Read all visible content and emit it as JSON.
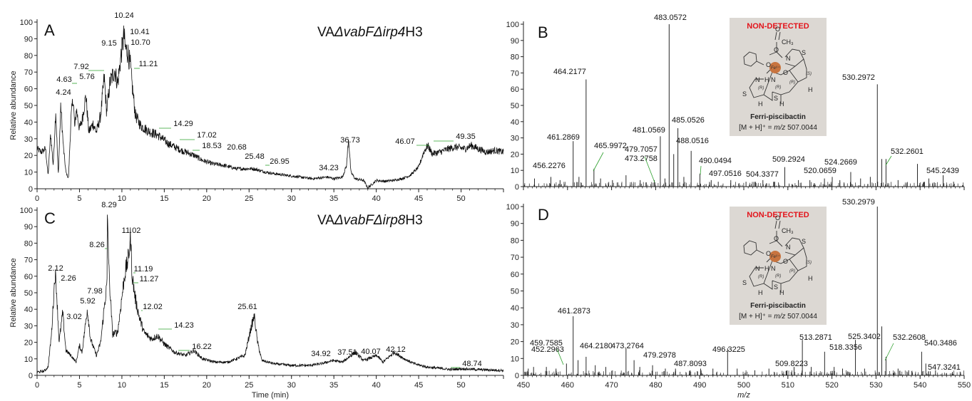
{
  "chart_data": [
    {
      "panel": "A",
      "type": "line",
      "strain": {
        "prefix": "VA",
        "italic": "ΔvabFΔirp4",
        "suffix": "H3"
      },
      "ylabel": "Relative abundance",
      "xlabel": "",
      "xlim": [
        0,
        55
      ],
      "ylim": [
        0,
        100
      ],
      "x_ticks": [
        "0",
        "5",
        "10",
        "15",
        "20",
        "25",
        "30",
        "35",
        "40",
        "45",
        "50"
      ],
      "y_ticks": [
        "0",
        "10",
        "20",
        "30",
        "40",
        "50",
        "60",
        "70",
        "80",
        "90",
        "100"
      ],
      "trace": [
        [
          0,
          24
        ],
        [
          0.5,
          22
        ],
        [
          1,
          24
        ],
        [
          1.3,
          8
        ],
        [
          1.6,
          33
        ],
        [
          1.9,
          14
        ],
        [
          2.2,
          47
        ],
        [
          2.5,
          8
        ],
        [
          2.8,
          50
        ],
        [
          3.1,
          25
        ],
        [
          3.4,
          10
        ],
        [
          3.7,
          6
        ],
        [
          4,
          42
        ],
        [
          4.24,
          55
        ],
        [
          4.45,
          36
        ],
        [
          4.63,
          48
        ],
        [
          5,
          36
        ],
        [
          5.3,
          41
        ],
        [
          5.76,
          56
        ],
        [
          6.1,
          34
        ],
        [
          6.6,
          39
        ],
        [
          7,
          34
        ],
        [
          7.5,
          44
        ],
        [
          7.92,
          67
        ],
        [
          8.2,
          46
        ],
        [
          8.6,
          64
        ],
        [
          9.15,
          71
        ],
        [
          9.5,
          63
        ],
        [
          9.9,
          80
        ],
        [
          10.24,
          92
        ],
        [
          10.41,
          84
        ],
        [
          10.7,
          82
        ],
        [
          11,
          74
        ],
        [
          11.21,
          62
        ],
        [
          11.6,
          44
        ],
        [
          12.2,
          38
        ],
        [
          13,
          35
        ],
        [
          14.29,
          32
        ],
        [
          15.5,
          27
        ],
        [
          17.02,
          23
        ],
        [
          18.53,
          20
        ],
        [
          19.5,
          17
        ],
        [
          20.68,
          15
        ],
        [
          22,
          14
        ],
        [
          23.5,
          12
        ],
        [
          25.48,
          12
        ],
        [
          26.95,
          10
        ],
        [
          28,
          9
        ],
        [
          29.5,
          8
        ],
        [
          31,
          7
        ],
        [
          32.5,
          6
        ],
        [
          34.23,
          7
        ],
        [
          35,
          6
        ],
        [
          36,
          7
        ],
        [
          36.5,
          14
        ],
        [
          36.73,
          31
        ],
        [
          37,
          10
        ],
        [
          37.5,
          6
        ],
        [
          38.5,
          5
        ],
        [
          39,
          0.5
        ],
        [
          40,
          5
        ],
        [
          41,
          4.5
        ],
        [
          42,
          5
        ],
        [
          43,
          6
        ],
        [
          44,
          8
        ],
        [
          45,
          13
        ],
        [
          45.6,
          22
        ],
        [
          46.07,
          26
        ],
        [
          46.6,
          21
        ],
        [
          47.5,
          22
        ],
        [
          48.5,
          24
        ],
        [
          49.35,
          25
        ],
        [
          50.5,
          24
        ],
        [
          51.2,
          26
        ],
        [
          52,
          24
        ],
        [
          53,
          22
        ],
        [
          54,
          23
        ],
        [
          55,
          22
        ]
      ],
      "peaks": [
        {
          "label": "4.24",
          "x": 4.24
        },
        {
          "label": "4.63",
          "x": 4.63
        },
        {
          "label": "5.76",
          "x": 5.76
        },
        {
          "label": "7.92",
          "x": 7.92
        },
        {
          "label": "9.15",
          "x": 9.15
        },
        {
          "label": "10.24",
          "x": 10.24
        },
        {
          "label": "10.41",
          "x": 10.41
        },
        {
          "label": "10.70",
          "x": 10.7
        },
        {
          "label": "11.21",
          "x": 11.21
        },
        {
          "label": "14.29",
          "x": 14.29
        },
        {
          "label": "17.02",
          "x": 17.02
        },
        {
          "label": "18.53",
          "x": 18.53
        },
        {
          "label": "20.68",
          "x": 20.68
        },
        {
          "label": "25.48",
          "x": 25.48
        },
        {
          "label": "26.95",
          "x": 26.95
        },
        {
          "label": "34.23",
          "x": 34.23
        },
        {
          "label": "36.73",
          "x": 36.73
        },
        {
          "label": "46.07",
          "x": 46.07
        },
        {
          "label": "49.35",
          "x": 49.35
        }
      ]
    },
    {
      "panel": "C",
      "type": "line",
      "strain": {
        "prefix": "VA",
        "italic": "ΔvabFΔirp8",
        "suffix": "H3"
      },
      "ylabel": "Relative abundance",
      "xlabel": "Time (min)",
      "xlim": [
        0,
        55
      ],
      "ylim": [
        0,
        100
      ],
      "x_ticks": [
        "0",
        "5",
        "10",
        "15",
        "20",
        "25",
        "30",
        "35",
        "40",
        "45",
        "50"
      ],
      "y_ticks": [
        "0",
        "10",
        "20",
        "30",
        "40",
        "50",
        "60",
        "70",
        "80",
        "90",
        "100"
      ],
      "trace": [
        [
          0,
          2
        ],
        [
          0.8,
          2.5
        ],
        [
          1.3,
          5
        ],
        [
          1.7,
          25
        ],
        [
          2.12,
          62
        ],
        [
          2.26,
          55
        ],
        [
          2.6,
          20
        ],
        [
          3.02,
          38
        ],
        [
          3.4,
          15
        ],
        [
          4,
          12
        ],
        [
          4.6,
          8
        ],
        [
          5,
          18
        ],
        [
          5.3,
          14
        ],
        [
          5.92,
          40
        ],
        [
          6.3,
          22
        ],
        [
          7,
          12
        ],
        [
          7.5,
          20
        ],
        [
          7.98,
          44
        ],
        [
          8.26,
          56
        ],
        [
          8.29,
          100
        ],
        [
          8.5,
          60
        ],
        [
          8.9,
          25
        ],
        [
          9.5,
          26
        ],
        [
          10.3,
          60
        ],
        [
          10.8,
          72
        ],
        [
          11.02,
          84
        ],
        [
          11.19,
          62
        ],
        [
          11.27,
          58
        ],
        [
          11.6,
          46
        ],
        [
          12.02,
          36
        ],
        [
          12.6,
          26
        ],
        [
          13.5,
          22
        ],
        [
          14.23,
          24
        ],
        [
          15,
          19
        ],
        [
          16.22,
          14
        ],
        [
          17.5,
          12
        ],
        [
          18.5,
          15
        ],
        [
          19.5,
          10
        ],
        [
          21,
          8
        ],
        [
          22.5,
          8
        ],
        [
          23.5,
          10
        ],
        [
          24.5,
          12
        ],
        [
          25.2,
          28
        ],
        [
          25.61,
          36
        ],
        [
          26,
          20
        ],
        [
          26.5,
          9
        ],
        [
          28,
          7
        ],
        [
          30,
          6
        ],
        [
          32,
          6
        ],
        [
          33.5,
          7
        ],
        [
          34.92,
          9
        ],
        [
          36,
          8
        ],
        [
          37.51,
          14
        ],
        [
          38.5,
          9
        ],
        [
          40.07,
          12
        ],
        [
          40.8,
          8
        ],
        [
          42.12,
          14
        ],
        [
          43.3,
          10
        ],
        [
          44.5,
          7
        ],
        [
          46,
          5
        ],
        [
          48,
          4
        ],
        [
          48.74,
          3.5
        ],
        [
          50,
          4
        ],
        [
          52,
          3.5
        ],
        [
          55,
          3
        ]
      ],
      "peaks": [
        {
          "label": "2.12",
          "x": 2.12
        },
        {
          "label": "2.26",
          "x": 2.26
        },
        {
          "label": "3.02",
          "x": 3.02
        },
        {
          "label": "5.92",
          "x": 5.92
        },
        {
          "label": "7.98",
          "x": 7.98
        },
        {
          "label": "8.26",
          "x": 8.26
        },
        {
          "label": "8.29",
          "x": 8.29
        },
        {
          "label": "11.02",
          "x": 11.02
        },
        {
          "label": "11.19",
          "x": 11.19
        },
        {
          "label": "11.27",
          "x": 11.27
        },
        {
          "label": "12.02",
          "x": 12.02
        },
        {
          "label": "14.23",
          "x": 14.23
        },
        {
          "label": "16.22",
          "x": 16.22
        },
        {
          "label": "25.61",
          "x": 25.61
        },
        {
          "label": "34.92",
          "x": 34.92
        },
        {
          "label": "37.51",
          "x": 37.51
        },
        {
          "label": "40.07",
          "x": 40.07
        },
        {
          "label": "42.12",
          "x": 42.12
        },
        {
          "label": "48.74",
          "x": 48.74
        }
      ]
    },
    {
      "panel": "B",
      "type": "bar",
      "xlabel": "",
      "ylabel": "",
      "xlim": [
        450,
        550
      ],
      "ylim": [
        0,
        100
      ],
      "x_ticks": [],
      "y_ticks": [
        "0",
        "10",
        "20",
        "30",
        "40",
        "50",
        "60",
        "70",
        "80",
        "90",
        "100"
      ],
      "peaks": [
        {
          "mz": 452.5,
          "y": 5
        },
        {
          "mz": 456.2276,
          "y": 6,
          "label": "456.2276"
        },
        {
          "mz": 458.3,
          "y": 4
        },
        {
          "mz": 461.2869,
          "y": 28,
          "label": "461.2869"
        },
        {
          "mz": 462.6,
          "y": 6
        },
        {
          "mz": 464.2177,
          "y": 66,
          "label": "464.2177"
        },
        {
          "mz": 465.9972,
          "y": 11,
          "label": "465.9972"
        },
        {
          "mz": 467.5,
          "y": 5
        },
        {
          "mz": 470.2,
          "y": 4
        },
        {
          "mz": 473.2758,
          "y": 7,
          "label": "473.2758"
        },
        {
          "mz": 476.5,
          "y": 4
        },
        {
          "mz": 479.7057,
          "y": 4,
          "label": "479.7057"
        },
        {
          "mz": 481.0569,
          "y": 31,
          "label": "481.0569"
        },
        {
          "mz": 482.1,
          "y": 5
        },
        {
          "mz": 483.0572,
          "y": 100,
          "label": "483.0572"
        },
        {
          "mz": 484.1,
          "y": 20
        },
        {
          "mz": 485.0526,
          "y": 36,
          "label": "485.0526"
        },
        {
          "mz": 486.4,
          "y": 6
        },
        {
          "mz": 488.0516,
          "y": 22,
          "label": "488.0516"
        },
        {
          "mz": 490.0494,
          "y": 8,
          "label": "490.0494"
        },
        {
          "mz": 492.6,
          "y": 4
        },
        {
          "mz": 494.2,
          "y": 3
        },
        {
          "mz": 497.0516,
          "y": 4,
          "label": "497.0516"
        },
        {
          "mz": 500.5,
          "y": 3
        },
        {
          "mz": 504.3377,
          "y": 4,
          "label": "504.3377"
        },
        {
          "mz": 507,
          "y": 3
        },
        {
          "mz": 509.2924,
          "y": 12,
          "label": "509.2924"
        },
        {
          "mz": 512.4,
          "y": 4
        },
        {
          "mz": 515,
          "y": 4
        },
        {
          "mz": 518.3,
          "y": 5
        },
        {
          "mz": 520.0659,
          "y": 6,
          "label": "520.0659"
        },
        {
          "mz": 521.8,
          "y": 4
        },
        {
          "mz": 524.2669,
          "y": 9,
          "label": "524.2669"
        },
        {
          "mz": 526.5,
          "y": 5
        },
        {
          "mz": 528.7,
          "y": 6
        },
        {
          "mz": 530.2972,
          "y": 63,
          "label": "530.2972"
        },
        {
          "mz": 531.3,
          "y": 17
        },
        {
          "mz": 532.2601,
          "y": 17,
          "label": "532.2601"
        },
        {
          "mz": 535,
          "y": 4
        },
        {
          "mz": 539.4,
          "y": 14
        },
        {
          "mz": 542,
          "y": 5
        },
        {
          "mz": 545.2439,
          "y": 7,
          "label": "545.2439"
        },
        {
          "mz": 547.6,
          "y": 3
        }
      ],
      "inset": {
        "title": "NON-DETECTED",
        "compound": "Ferri-piscibactin",
        "mass_prefix": "[M + H]⁺ = ",
        "mass_var": "m/z",
        "mass_value": " 507.0044",
        "atoms": {
          "o": "O",
          "fe": "Fe³⁺",
          "n": "N",
          "h": "H",
          "s": "S",
          "ch3": "CH₃",
          "hn": "H N",
          "r": "(R)",
          "s_cfg": "(S)"
        }
      }
    },
    {
      "panel": "D",
      "type": "bar",
      "xlabel": "m/z",
      "ylabel": "",
      "xlim": [
        450,
        550
      ],
      "ylim": [
        0,
        100
      ],
      "x_ticks": [
        "450",
        "460",
        "470",
        "480",
        "490",
        "500",
        "510",
        "520",
        "530",
        "540",
        "550"
      ],
      "y_ticks": [
        "0",
        "10",
        "20",
        "30",
        "40",
        "50",
        "60",
        "70",
        "80",
        "90",
        "100"
      ],
      "peaks": [
        {
          "mz": 451.1,
          "y": 4
        },
        {
          "mz": 452.2963,
          "y": 5,
          "label": "452.2963"
        },
        {
          "mz": 455.2,
          "y": 5
        },
        {
          "mz": 457.4,
          "y": 4
        },
        {
          "mz": 459.7585,
          "y": 7,
          "label": "459.7585"
        },
        {
          "mz": 461.2873,
          "y": 35,
          "label": "461.2873"
        },
        {
          "mz": 462.4,
          "y": 9
        },
        {
          "mz": 464.218,
          "y": 11,
          "label": "464.2180"
        },
        {
          "mz": 466.3,
          "y": 6
        },
        {
          "mz": 468.7,
          "y": 5
        },
        {
          "mz": 473.2764,
          "y": 16,
          "label": "473.2764"
        },
        {
          "mz": 475.1,
          "y": 9
        },
        {
          "mz": 476.4,
          "y": 5
        },
        {
          "mz": 479.2978,
          "y": 6,
          "label": "479.2978"
        },
        {
          "mz": 482.2,
          "y": 4
        },
        {
          "mz": 484.5,
          "y": 4
        },
        {
          "mz": 487.8093,
          "y": 3,
          "label": "487.8093"
        },
        {
          "mz": 490.2,
          "y": 4
        },
        {
          "mz": 493,
          "y": 4
        },
        {
          "mz": 496.3225,
          "y": 16,
          "label": "496.3225"
        },
        {
          "mz": 498.5,
          "y": 4
        },
        {
          "mz": 502.5,
          "y": 3
        },
        {
          "mz": 505.7,
          "y": 4
        },
        {
          "mz": 509.8223,
          "y": 3,
          "label": "509.8223"
        },
        {
          "mz": 511.4,
          "y": 5
        },
        {
          "mz": 513.2871,
          "y": 21,
          "label": "513.2871"
        },
        {
          "mz": 515.3,
          "y": 5
        },
        {
          "mz": 518.3356,
          "y": 14,
          "label": "518.3356"
        },
        {
          "mz": 520.5,
          "y": 5
        },
        {
          "mz": 522.4,
          "y": 4
        },
        {
          "mz": 525.3402,
          "y": 21,
          "label": "525.3402"
        },
        {
          "mz": 527.4,
          "y": 4
        },
        {
          "mz": 530.2979,
          "y": 100,
          "label": "530.2979"
        },
        {
          "mz": 531.3,
          "y": 29
        },
        {
          "mz": 532.2608,
          "y": 11,
          "label": "532.2608"
        },
        {
          "mz": 535,
          "y": 4
        },
        {
          "mz": 537.4,
          "y": 3
        },
        {
          "mz": 540.3486,
          "y": 14,
          "label": "540.3486"
        },
        {
          "mz": 541.3,
          "y": 7
        },
        {
          "mz": 543.5,
          "y": 3
        },
        {
          "mz": 547.3241,
          "y": 2,
          "label": "547.3241"
        }
      ],
      "inset": {
        "title": "NON-DETECTED",
        "compound": "Ferri-piscibactin",
        "mass_prefix": "[M + H]⁺ = ",
        "mass_var": "m/z",
        "mass_value": " 507.0044",
        "atoms": {
          "o": "O",
          "fe": "Fe³⁺",
          "n": "N",
          "h": "H",
          "s": "S",
          "ch3": "CH₃",
          "hn": "H N",
          "r": "(R)",
          "s_cfg": "(S)"
        }
      }
    }
  ],
  "colors": {
    "trace": "#111111",
    "leader": "#2ca02c",
    "inset_bg": "#dcd8d3",
    "inset_title": "#e3141b",
    "iron": "#c8743f"
  }
}
